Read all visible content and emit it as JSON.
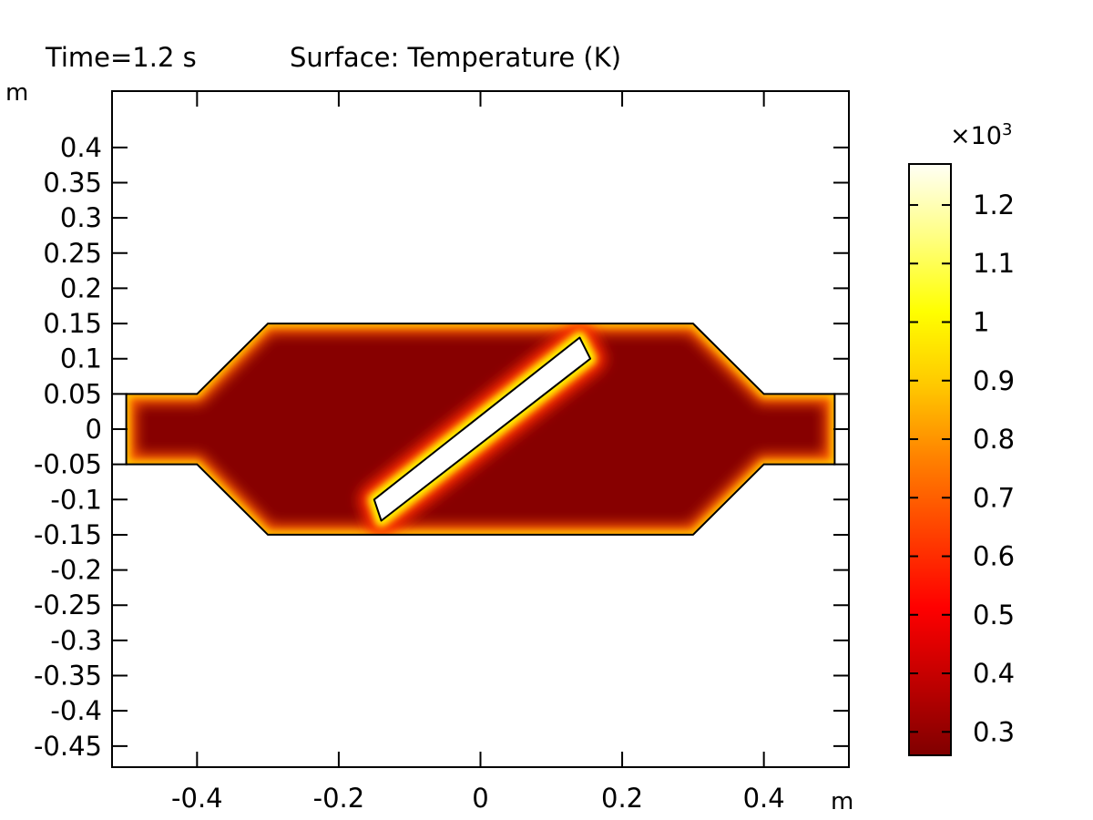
{
  "chart_data": {
    "type": "heatmap",
    "title": "Surface: Temperature (K)",
    "time_label": "Time=1.2 s",
    "xlabel": "m",
    "ylabel": "m",
    "xlim": [
      -0.52,
      0.52
    ],
    "ylim": [
      -0.48,
      0.48
    ],
    "xticks": [
      -0.4,
      -0.2,
      0,
      0.2,
      0.4
    ],
    "xtick_labels": [
      "-0.4",
      "-0.2",
      "0",
      "0.2",
      "0.4"
    ],
    "yticks": [
      0.4,
      0.35,
      0.3,
      0.25,
      0.2,
      0.15,
      0.1,
      0.05,
      0,
      -0.05,
      -0.1,
      -0.15,
      -0.2,
      -0.25,
      -0.3,
      -0.35,
      -0.4,
      -0.45
    ],
    "ytick_labels": [
      "0.4",
      "0.35",
      "0.3",
      "0.25",
      "0.2",
      "0.15",
      "0.1",
      "0.05",
      "0",
      "-0.05",
      "-0.1",
      "-0.15",
      "-0.2",
      "-0.25",
      "-0.3",
      "-0.35",
      "-0.4",
      "-0.45"
    ],
    "colorbar": {
      "multiplier": "×10",
      "exponent": "3",
      "range": [
        0.26,
        1.27
      ],
      "ticks": [
        1.2,
        1.1,
        1,
        0.9,
        0.8,
        0.7,
        0.6,
        0.5,
        0.4,
        0.3
      ],
      "tick_labels": [
        "1.2",
        "1.1",
        "1",
        "0.9",
        "0.8",
        "0.7",
        "0.6",
        "0.5",
        "0.4",
        "0.3"
      ],
      "colormap": [
        "#fffff5",
        "#ffff80",
        "#ffff00",
        "#ffc800",
        "#ff8000",
        "#ff4000",
        "#ff0000",
        "#c00000",
        "#800000"
      ]
    },
    "domain_outline": [
      [
        -0.5,
        0.05
      ],
      [
        -0.4,
        0.05
      ],
      [
        -0.3,
        0.15
      ],
      [
        0.3,
        0.15
      ],
      [
        0.4,
        0.05
      ],
      [
        0.5,
        0.05
      ],
      [
        0.5,
        -0.05
      ],
      [
        0.4,
        -0.05
      ],
      [
        0.3,
        -0.15
      ],
      [
        -0.3,
        -0.15
      ],
      [
        -0.4,
        -0.05
      ],
      [
        -0.5,
        -0.05
      ]
    ],
    "plate_outline": [
      [
        -0.15,
        -0.1
      ],
      [
        0.14,
        0.13
      ],
      [
        0.155,
        0.1
      ],
      [
        -0.14,
        -0.13
      ]
    ],
    "fluid_temperature_K": 273,
    "plate_temperature_K": 1270,
    "wall_temperature_K": 700,
    "colors": {
      "fluid": "#800000",
      "plate_fill": "#ffffff",
      "outline": "#000000"
    }
  }
}
